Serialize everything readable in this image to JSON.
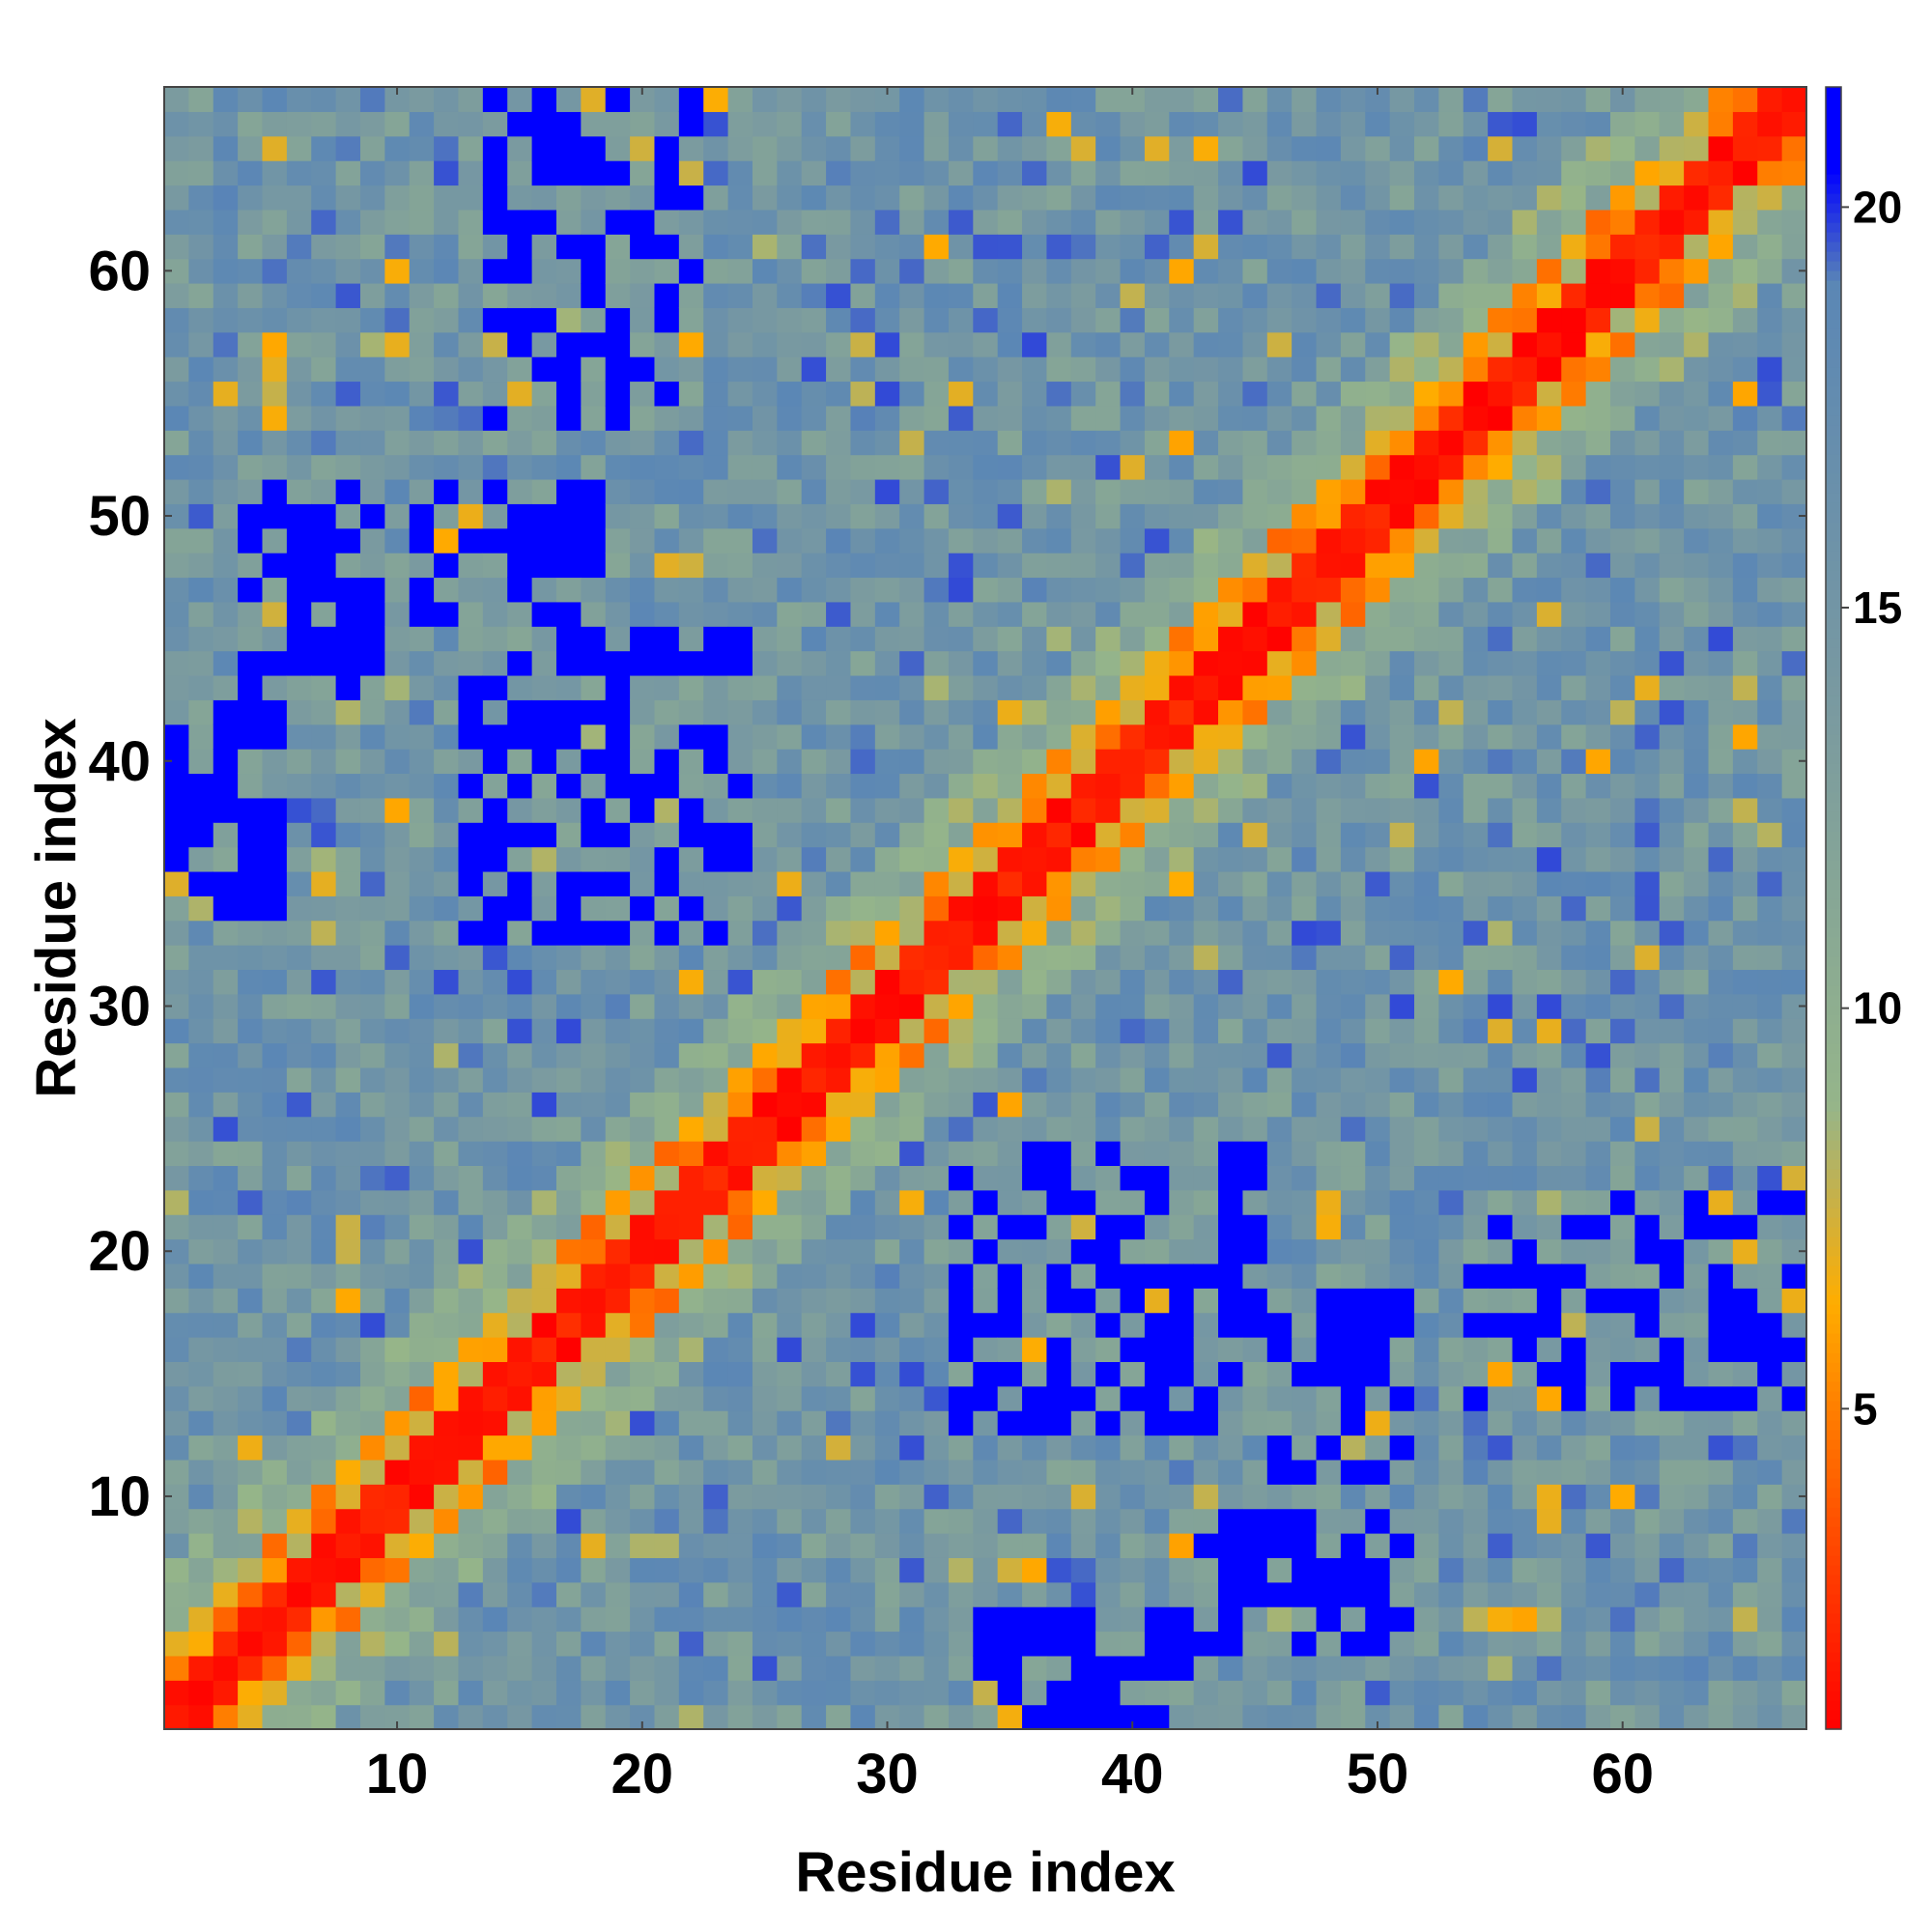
{
  "chart_data": {
    "type": "heatmap",
    "title": "",
    "xlabel": "Residue index",
    "ylabel": "Residue index",
    "n": 67,
    "xlim": [
      0.5,
      67.5
    ],
    "ylim": [
      0.5,
      67.5
    ],
    "x_ticks": [
      "10",
      "20",
      "30",
      "40",
      "50",
      "60"
    ],
    "y_ticks": [
      "10",
      "20",
      "30",
      "40",
      "50",
      "60"
    ],
    "colorbar_ticks": [
      "5",
      "10",
      "15",
      "20"
    ],
    "colorbar_range": [
      1,
      21.5
    ],
    "colorscale": [
      "#ff0000",
      "#ff4000",
      "#ff7b00",
      "#ffad00",
      "#95b58a",
      "#7a9aa0",
      "#5b87b5",
      "#0000ff"
    ],
    "colorscale_stops": [
      0,
      0.1,
      0.19,
      0.26,
      0.38,
      0.62,
      0.88,
      0.95
    ],
    "symmetric": true,
    "diagonal_band_width": 1,
    "blue_block_regions_lower": [
      {
        "x": [
          33,
          45
        ],
        "y": [
          13,
          24
        ]
      },
      {
        "x": [
          46,
          51
        ],
        "y": [
          11,
          18
        ]
      },
      {
        "x": [
          54,
          67
        ],
        "y": [
          14,
          22
        ]
      },
      {
        "x": [
          43,
          52
        ],
        "y": [
          4,
          9
        ]
      },
      {
        "x": [
          34,
          42
        ],
        "y": [
          1,
          5
        ]
      }
    ]
  }
}
